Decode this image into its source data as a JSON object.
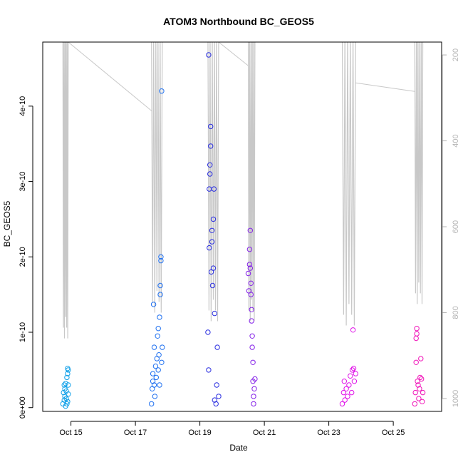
{
  "chart_data": {
    "type": "scatter",
    "title": "ATOM3 Northbound BC_GEOS5",
    "xlabel": "Date",
    "ylabel": "BC_GEOS5",
    "x_type": "date",
    "xlim": [
      "2016-10-14 03:00",
      "2016-10-26 12:00"
    ],
    "ylim": [
      -5e-12,
      4.85e-10
    ],
    "y_ticks": [
      0,
      1e-10,
      2e-10,
      3e-10,
      4e-10
    ],
    "y_tick_labels": [
      "0e+00",
      "1e-10",
      "2e-10",
      "3e-10",
      "4e-10"
    ],
    "x_ticks": [
      "2016-10-15",
      "2016-10-17",
      "2016-10-19",
      "2016-10-21",
      "2016-10-23",
      "2016-10-25"
    ],
    "x_tick_labels": [
      "Oct 15",
      "Oct 17",
      "Oct 19",
      "Oct 21",
      "Oct 23",
      "Oct 25"
    ],
    "right_axis": {
      "reversed": true,
      "ylim": [
        170,
        1030
      ],
      "ticks": [
        200,
        400,
        600,
        800,
        1000
      ],
      "tick_labels": [
        "200",
        "400",
        "600",
        "800",
        "1000"
      ],
      "color": "#b4b4b4"
    },
    "grid": false,
    "legend": "none",
    "pressure_profile_color": "#c8c8c8",
    "pressure_profiles": [
      {
        "start": "2016-10-14 18:00",
        "end": "2016-10-14 22:00",
        "max_p": 860
      },
      {
        "start": "2016-10-17 12:00",
        "end": "2016-10-17 20:00",
        "max_p": 800
      },
      {
        "start": "2016-10-19 06:00",
        "end": "2016-10-19 14:00",
        "max_p": 820
      },
      {
        "start": "2016-10-20 12:00",
        "end": "2016-10-20 17:00",
        "max_p": 820
      },
      {
        "start": "2016-10-23 10:00",
        "end": "2016-10-23 20:00",
        "max_p": 830
      },
      {
        "start": "2016-10-25 16:00",
        "end": "2016-10-25 22:00",
        "max_p": 780
      }
    ],
    "pressure_connectors": [
      {
        "x": [
          "2016-10-14 22:00",
          "2016-10-17 12:00"
        ],
        "p": [
          170,
          330
        ]
      },
      {
        "x": [
          "2016-10-19 14:00",
          "2016-10-20 12:00"
        ],
        "p": [
          170,
          225
        ]
      },
      {
        "x": [
          "2016-10-23 20:00",
          "2016-10-25 16:00"
        ],
        "p": [
          265,
          285
        ]
      }
    ],
    "series": [
      {
        "color": "#10a0e8",
        "points": [
          [
            "2016-10-14 18:00",
            5e-12
          ],
          [
            "2016-10-14 18:30",
            2e-11
          ],
          [
            "2016-10-14 19:00",
            1e-11
          ],
          [
            "2016-10-14 19:00",
            3e-11
          ],
          [
            "2016-10-14 19:30",
            1.5e-11
          ],
          [
            "2016-10-14 19:30",
            2.5e-11
          ],
          [
            "2016-10-14 20:00",
            2e-12
          ],
          [
            "2016-10-14 20:00",
            3.2e-11
          ],
          [
            "2016-10-14 20:30",
            1.2e-11
          ],
          [
            "2016-10-14 20:30",
            2.2e-11
          ],
          [
            "2016-10-14 21:00",
            5e-12
          ],
          [
            "2016-10-14 21:00",
            4e-11
          ],
          [
            "2016-10-14 21:30",
            5.2e-11
          ],
          [
            "2016-10-14 21:30",
            4.5e-11
          ],
          [
            "2016-10-14 21:30",
            8e-12
          ],
          [
            "2016-10-14 22:00",
            5e-11
          ],
          [
            "2016-10-14 22:00",
            1.8e-11
          ],
          [
            "2016-10-14 22:00",
            3e-11
          ]
        ]
      },
      {
        "color": "#1f70f0",
        "points": [
          [
            "2016-10-17 12:00",
            5e-12
          ],
          [
            "2016-10-17 12:30",
            2.5e-11
          ],
          [
            "2016-10-17 13:00",
            3.5e-11
          ],
          [
            "2016-10-17 13:00",
            4.5e-11
          ],
          [
            "2016-10-17 13:30",
            1.37e-10
          ],
          [
            "2016-10-17 14:00",
            8e-11
          ],
          [
            "2016-10-17 14:00",
            3e-11
          ],
          [
            "2016-10-17 14:30",
            1.5e-11
          ],
          [
            "2016-10-17 15:00",
            5.5e-11
          ],
          [
            "2016-10-17 15:30",
            4e-11
          ],
          [
            "2016-10-17 16:00",
            6.5e-11
          ],
          [
            "2016-10-17 16:30",
            9.5e-11
          ],
          [
            "2016-10-17 17:00",
            1.05e-10
          ],
          [
            "2016-10-17 17:00",
            5e-11
          ],
          [
            "2016-10-17 17:30",
            7e-11
          ],
          [
            "2016-10-17 18:00",
            1.2e-10
          ],
          [
            "2016-10-17 18:00",
            3e-11
          ],
          [
            "2016-10-17 18:30",
            1.5e-10
          ],
          [
            "2016-10-17 18:30",
            1.62e-10
          ],
          [
            "2016-10-17 19:00",
            1.95e-10
          ],
          [
            "2016-10-17 19:00",
            2e-10
          ],
          [
            "2016-10-17 19:30",
            4.2e-10
          ],
          [
            "2016-10-17 19:30",
            6e-11
          ],
          [
            "2016-10-17 20:00",
            8e-11
          ]
        ]
      },
      {
        "color": "#2b2fe0",
        "points": [
          [
            "2016-10-19 06:00",
            1e-10
          ],
          [
            "2016-10-19 06:30",
            5e-11
          ],
          [
            "2016-10-19 07:00",
            2.12e-10
          ],
          [
            "2016-10-19 07:00",
            2.9e-10
          ],
          [
            "2016-10-19 07:30",
            3.1e-10
          ],
          [
            "2016-10-19 07:30",
            3.22e-10
          ],
          [
            "2016-10-19 08:00",
            3.47e-10
          ],
          [
            "2016-10-19 08:00",
            3.73e-10
          ],
          [
            "2016-10-19 06:30",
            4.68e-10
          ],
          [
            "2016-10-19 08:30",
            1.8e-10
          ],
          [
            "2016-10-19 09:00",
            2.2e-10
          ],
          [
            "2016-10-19 09:00",
            2.35e-10
          ],
          [
            "2016-10-19 09:30",
            1.62e-10
          ],
          [
            "2016-10-19 10:00",
            1.85e-10
          ],
          [
            "2016-10-19 10:00",
            2.5e-10
          ],
          [
            "2016-10-19 10:30",
            2.9e-10
          ],
          [
            "2016-10-19 11:00",
            1.25e-10
          ],
          [
            "2016-10-19 11:00",
            1e-11
          ],
          [
            "2016-10-19 12:00",
            5e-12
          ],
          [
            "2016-10-19 12:30",
            3e-11
          ],
          [
            "2016-10-19 13:00",
            8e-11
          ],
          [
            "2016-10-19 14:00",
            1.5e-11
          ]
        ]
      },
      {
        "color": "#8420e8",
        "points": [
          [
            "2016-10-20 12:00",
            1.78e-10
          ],
          [
            "2016-10-20 12:30",
            1.55e-10
          ],
          [
            "2016-10-20 13:00",
            2.1e-10
          ],
          [
            "2016-10-20 13:00",
            1.9e-10
          ],
          [
            "2016-10-20 13:30",
            2.35e-10
          ],
          [
            "2016-10-20 13:30",
            1.85e-10
          ],
          [
            "2016-10-20 14:00",
            1.65e-10
          ],
          [
            "2016-10-20 14:00",
            1.5e-10
          ],
          [
            "2016-10-20 14:30",
            1.3e-10
          ],
          [
            "2016-10-20 14:30",
            1.15e-10
          ],
          [
            "2016-10-20 15:00",
            9.5e-11
          ],
          [
            "2016-10-20 15:00",
            8e-11
          ],
          [
            "2016-10-20 15:30",
            6e-11
          ],
          [
            "2016-10-20 15:30",
            3.5e-11
          ],
          [
            "2016-10-20 16:00",
            1.5e-11
          ],
          [
            "2016-10-20 16:00",
            5e-12
          ],
          [
            "2016-10-20 16:30",
            2.5e-11
          ],
          [
            "2016-10-20 17:00",
            3.8e-11
          ]
        ]
      },
      {
        "color": "#e010e8",
        "points": [
          [
            "2016-10-23 10:00",
            5e-12
          ],
          [
            "2016-10-23 11:00",
            2e-11
          ],
          [
            "2016-10-23 11:30",
            3.5e-11
          ],
          [
            "2016-10-23 12:00",
            1e-11
          ],
          [
            "2016-10-23 13:00",
            2.5e-11
          ],
          [
            "2016-10-23 14:00",
            1.5e-11
          ],
          [
            "2016-10-23 15:00",
            3e-11
          ],
          [
            "2016-10-23 16:00",
            4.2e-11
          ],
          [
            "2016-10-23 17:00",
            2e-11
          ],
          [
            "2016-10-23 17:30",
            5e-11
          ],
          [
            "2016-10-23 18:00",
            1.03e-10
          ],
          [
            "2016-10-23 18:30",
            5.2e-11
          ],
          [
            "2016-10-23 19:00",
            3.5e-11
          ],
          [
            "2016-10-23 20:00",
            4.5e-11
          ]
        ]
      },
      {
        "color": "#f012b8",
        "points": [
          [
            "2016-10-25 16:00",
            5e-12
          ],
          [
            "2016-10-25 16:30",
            2e-11
          ],
          [
            "2016-10-25 17:00",
            6e-11
          ],
          [
            "2016-10-25 17:00",
            9.2e-11
          ],
          [
            "2016-10-25 17:30",
            1.05e-10
          ],
          [
            "2016-10-25 17:30",
            9.8e-11
          ],
          [
            "2016-10-25 18:00",
            3.5e-11
          ],
          [
            "2016-10-25 18:30",
            3e-11
          ],
          [
            "2016-10-25 19:00",
            1.2e-11
          ],
          [
            "2016-10-25 19:30",
            2.5e-11
          ],
          [
            "2016-10-25 20:00",
            4e-11
          ],
          [
            "2016-10-25 20:30",
            6.5e-11
          ],
          [
            "2016-10-25 21:00",
            3.8e-11
          ],
          [
            "2016-10-25 21:30",
            8e-12
          ],
          [
            "2016-10-25 22:00",
            2e-11
          ]
        ]
      }
    ]
  }
}
